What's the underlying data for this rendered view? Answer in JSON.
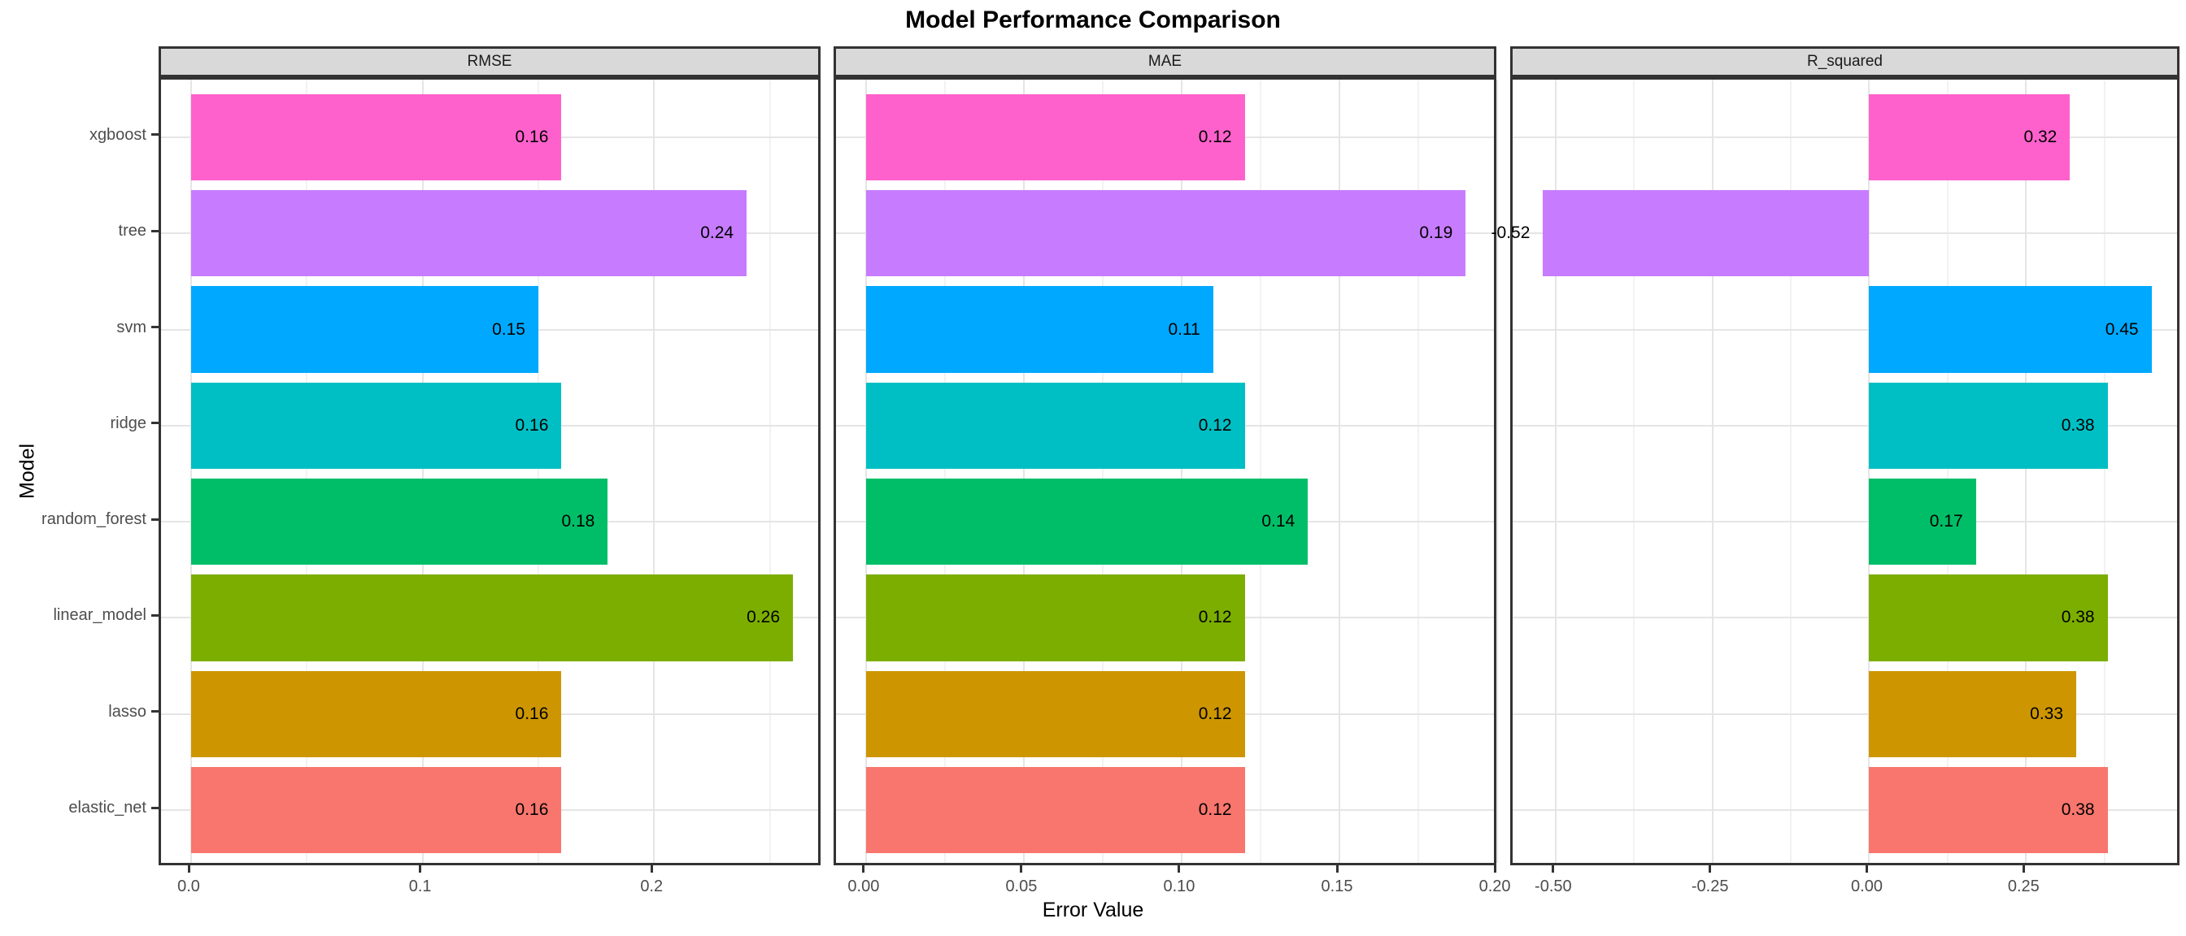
{
  "title": "Model Performance Comparison",
  "x_axis_title": "Error Value",
  "y_axis_title": "Model",
  "chart_data": {
    "type": "bar",
    "orientation": "horizontal",
    "grid": true,
    "facet_titles": [
      "RMSE",
      "MAE",
      "R_squared"
    ],
    "models_top_to_bottom": [
      "xgboost",
      "tree",
      "svm",
      "ridge",
      "random_forest",
      "linear_model",
      "lasso",
      "elastic_net"
    ],
    "bar_colors": {
      "xgboost": "#FF61CC",
      "tree": "#C77CFF",
      "svm": "#00A9FF",
      "ridge": "#00BFC4",
      "random_forest": "#00BE67",
      "linear_model": "#7CAE00",
      "lasso": "#CD9600",
      "elastic_net": "#F8766D"
    },
    "facets": [
      {
        "name": "RMSE",
        "xlim": [
          -0.013,
          0.273
        ],
        "ticks": [
          {
            "value": 0.0,
            "label": "0.0"
          },
          {
            "value": 0.1,
            "label": "0.1"
          },
          {
            "value": 0.2,
            "label": "0.2"
          }
        ],
        "minor_ticks": [
          0.05,
          0.15,
          0.25
        ],
        "bars": [
          {
            "model": "xgboost",
            "value": 0.16,
            "label": "0.16"
          },
          {
            "model": "tree",
            "value": 0.24,
            "label": "0.24"
          },
          {
            "model": "svm",
            "value": 0.15,
            "label": "0.15"
          },
          {
            "model": "ridge",
            "value": 0.16,
            "label": "0.16"
          },
          {
            "model": "random_forest",
            "value": 0.18,
            "label": "0.18"
          },
          {
            "model": "linear_model",
            "value": 0.26,
            "label": "0.26"
          },
          {
            "model": "lasso",
            "value": 0.16,
            "label": "0.16"
          },
          {
            "model": "elastic_net",
            "value": 0.16,
            "label": "0.16"
          }
        ]
      },
      {
        "name": "MAE",
        "xlim": [
          -0.0095,
          0.2005
        ],
        "ticks": [
          {
            "value": 0.0,
            "label": "0.00"
          },
          {
            "value": 0.05,
            "label": "0.05"
          },
          {
            "value": 0.1,
            "label": "0.10"
          },
          {
            "value": 0.15,
            "label": "0.15"
          },
          {
            "value": 0.2,
            "label": "0.20"
          }
        ],
        "minor_ticks": [
          0.025,
          0.075,
          0.125,
          0.175
        ],
        "bars": [
          {
            "model": "xgboost",
            "value": 0.12,
            "label": "0.12"
          },
          {
            "model": "tree",
            "value": 0.19,
            "label": "0.19"
          },
          {
            "model": "svm",
            "value": 0.11,
            "label": "0.11"
          },
          {
            "model": "ridge",
            "value": 0.12,
            "label": "0.12"
          },
          {
            "model": "random_forest",
            "value": 0.14,
            "label": "0.14"
          },
          {
            "model": "linear_model",
            "value": 0.12,
            "label": "0.12"
          },
          {
            "model": "lasso",
            "value": 0.12,
            "label": "0.12"
          },
          {
            "model": "elastic_net",
            "value": 0.12,
            "label": "0.12"
          }
        ]
      },
      {
        "name": "R_squared",
        "xlim": [
          -0.5685,
          0.4985
        ],
        "ticks": [
          {
            "value": -0.5,
            "label": "-0.50"
          },
          {
            "value": -0.25,
            "label": "-0.25"
          },
          {
            "value": 0.0,
            "label": "0.00"
          },
          {
            "value": 0.25,
            "label": "0.25"
          }
        ],
        "minor_ticks": [
          -0.375,
          -0.125,
          0.125,
          0.375
        ],
        "bars": [
          {
            "model": "xgboost",
            "value": 0.32,
            "label": "0.32"
          },
          {
            "model": "tree",
            "value": -0.52,
            "label": "-0.52"
          },
          {
            "model": "svm",
            "value": 0.45,
            "label": "0.45"
          },
          {
            "model": "ridge",
            "value": 0.38,
            "label": "0.38"
          },
          {
            "model": "random_forest",
            "value": 0.17,
            "label": "0.17"
          },
          {
            "model": "linear_model",
            "value": 0.38,
            "label": "0.38"
          },
          {
            "model": "lasso",
            "value": 0.33,
            "label": "0.33"
          },
          {
            "model": "elastic_net",
            "value": 0.38,
            "label": "0.38"
          }
        ]
      }
    ],
    "style": {
      "strip_background": "#D9D9D9",
      "panel_border": "#333333",
      "grid_major_color": "#E5E5E5",
      "grid_minor_color": "#F2F2F2",
      "tick_label_color": "#4D4D4D",
      "text_color": "#000000"
    }
  }
}
